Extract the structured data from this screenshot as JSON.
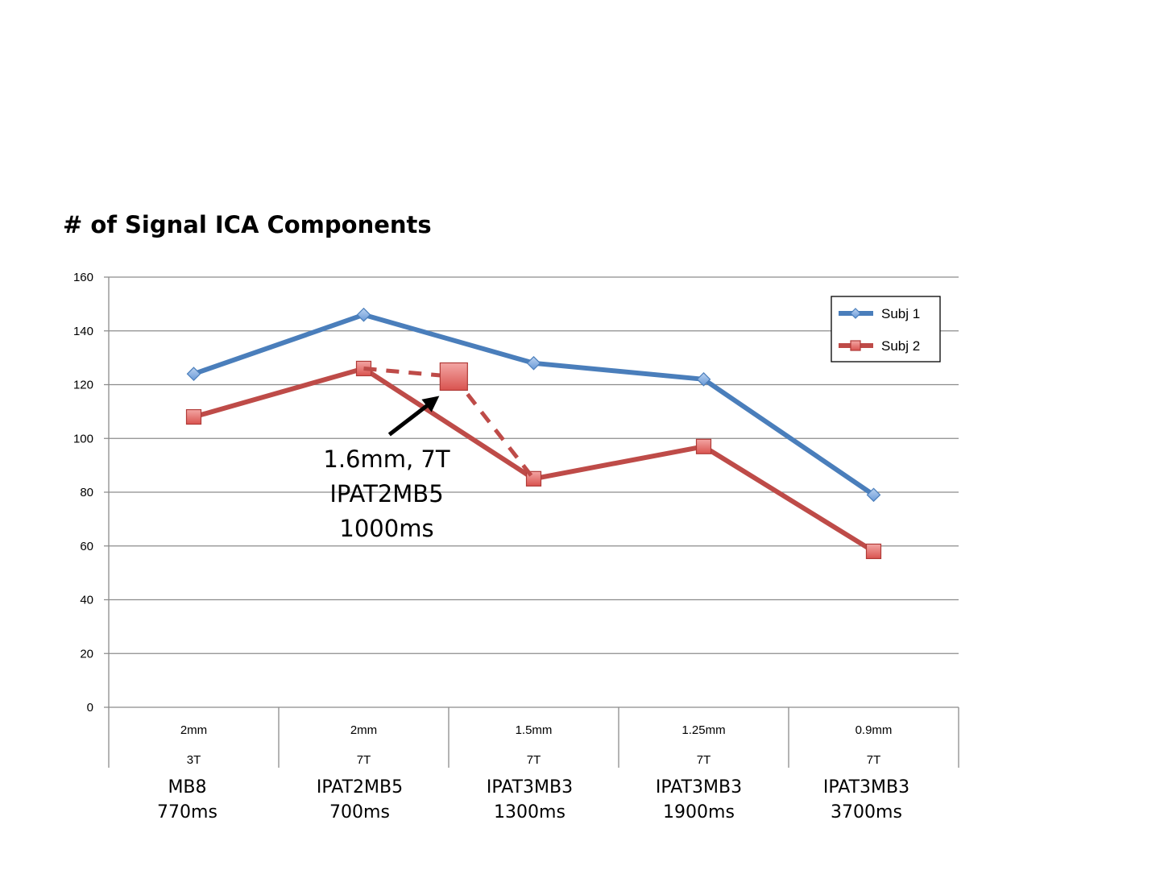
{
  "chart_data": {
    "type": "line",
    "title": "# of Signal ICA Components",
    "ylim": [
      0,
      160
    ],
    "yticks": [
      0,
      20,
      40,
      60,
      80,
      100,
      120,
      140,
      160
    ],
    "grid": true,
    "legend_position": "top-right",
    "categories": [
      {
        "line1": "2mm",
        "line2": "3T",
        "line3": "MB8",
        "line4": "770ms"
      },
      {
        "line1": "2mm",
        "line2": "7T",
        "line3": "IPAT2MB5",
        "line4": "700ms"
      },
      {
        "line1": "1.5mm",
        "line2": "7T",
        "line3": "IPAT3MB3",
        "line4": "1300ms"
      },
      {
        "line1": "1.25mm",
        "line2": "7T",
        "line3": "IPAT3MB3",
        "line4": "1900ms"
      },
      {
        "line1": "0.9mm",
        "line2": "7T",
        "line3": "IPAT3MB3",
        "line4": "3700ms"
      }
    ],
    "series": [
      {
        "name": "Subj 1",
        "color": "#4a7ebb",
        "marker": "diamond",
        "values": [
          124,
          146,
          128,
          122,
          79
        ]
      },
      {
        "name": "Subj 2",
        "color": "#be4b48",
        "marker": "square",
        "values": [
          108,
          126,
          85,
          97,
          58
        ]
      }
    ],
    "extra_point": {
      "x_position": 1.53,
      "value": 123,
      "color": "#be4b48",
      "dashed_connects_from": 1,
      "dashed_connects_to": 2,
      "label_lines": [
        "1.6mm, 7T",
        "IPAT2MB5",
        "1000ms"
      ]
    }
  }
}
